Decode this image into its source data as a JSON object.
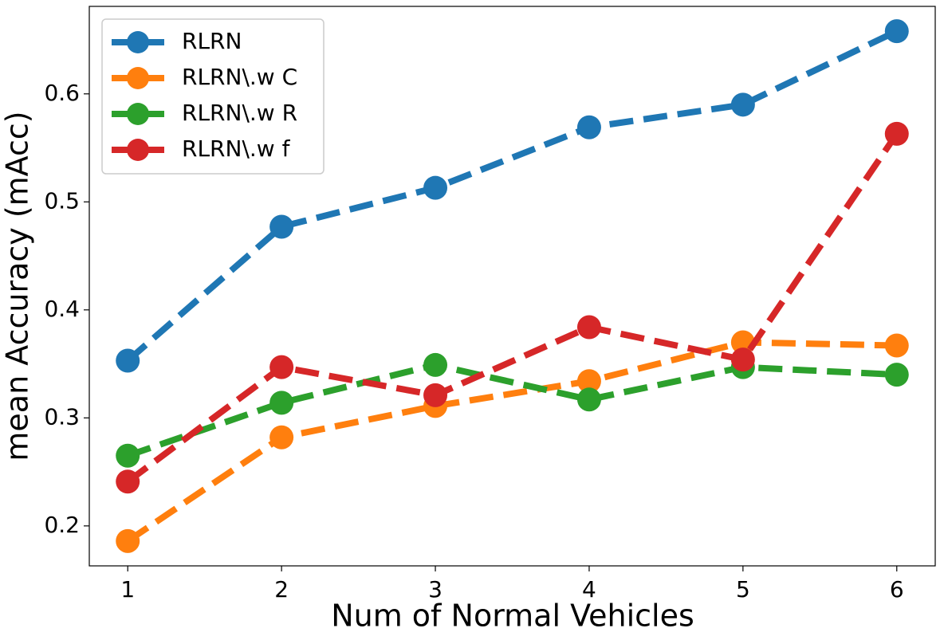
{
  "chart_data": {
    "type": "line",
    "x_label": "Num of Normal Vehicles",
    "y_label": "mean Accuracy (mAcc)",
    "x": [
      1,
      2,
      3,
      4,
      5,
      6
    ],
    "series": [
      {
        "name": "RLRN",
        "color": "#1f77b4",
        "values": [
          0.353,
          0.477,
          0.513,
          0.569,
          0.59,
          0.658
        ]
      },
      {
        "name": "RLRN\\.w C",
        "color": "#ff7f0e",
        "values": [
          0.186,
          0.282,
          0.311,
          0.334,
          0.37,
          0.367
        ]
      },
      {
        "name": "RLRN\\.w R",
        "color": "#2ca02c",
        "values": [
          0.265,
          0.314,
          0.349,
          0.317,
          0.347,
          0.34
        ]
      },
      {
        "name": "RLRN\\.w f",
        "color": "#d62728",
        "values": [
          0.241,
          0.347,
          0.321,
          0.384,
          0.354,
          0.563
        ]
      }
    ],
    "xlim": [
      0.75,
      6.25
    ],
    "ylim": [
      0.163,
      0.681
    ],
    "xticks": [
      1,
      2,
      3,
      4,
      5,
      6
    ],
    "yticks": [
      0.2,
      0.3,
      0.4,
      0.5,
      0.6
    ],
    "legend": "upper left",
    "grid": false
  }
}
